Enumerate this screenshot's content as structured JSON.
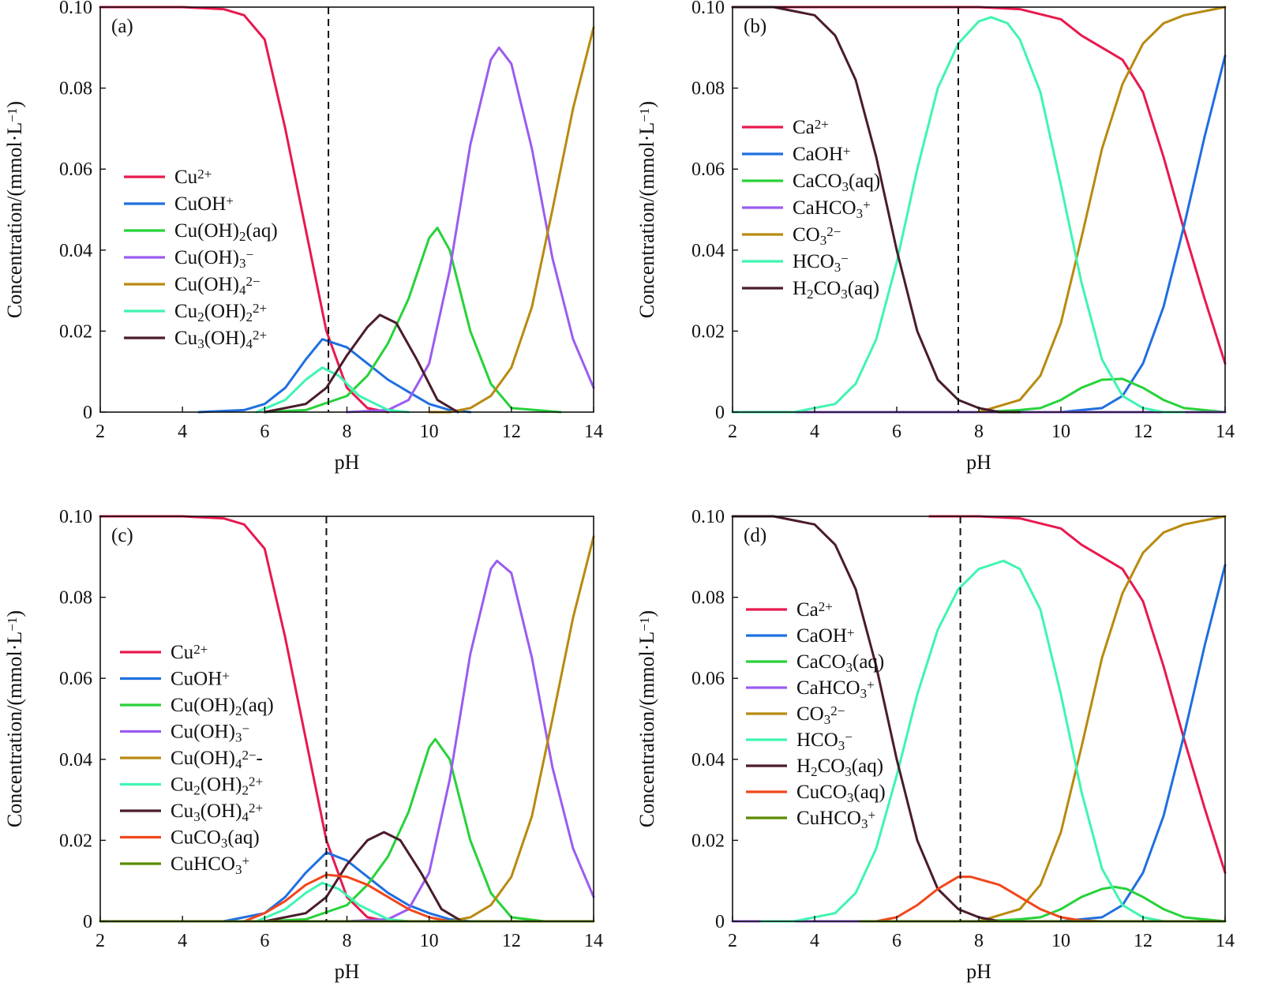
{
  "chart_data": [
    {
      "type": "line",
      "panel_label": "(a)",
      "xlabel": "pH",
      "ylabel": "Concentration/(mmol·L",
      "ylabel_sup": "−1",
      "ylabel_end": ")",
      "xlim": [
        2,
        14
      ],
      "ylim": [
        0,
        0.1
      ],
      "xticks": [
        "2",
        "4",
        "6",
        "8",
        "10",
        "12",
        "14"
      ],
      "yticks": [
        "0",
        "0.02",
        "0.04",
        "0.06",
        "0.08",
        "0.10"
      ],
      "reference_line_x": 7.55,
      "legend_position": "middle-left",
      "series": [
        {
          "name": "Cu²⁺",
          "color": "#e8194f",
          "x": [
            2,
            4,
            5,
            5.5,
            6,
            6.5,
            7,
            7.5,
            8,
            8.5,
            9
          ],
          "y": [
            0.1,
            0.1,
            0.0995,
            0.098,
            0.092,
            0.07,
            0.045,
            0.02,
            0.006,
            0.001,
            0
          ]
        },
        {
          "name": "CuOH⁺",
          "color": "#1f6fe0",
          "x": [
            4.4,
            5.5,
            6,
            6.5,
            7,
            7.4,
            8,
            8.5,
            9,
            9.5,
            10,
            10.5,
            11
          ],
          "y": [
            0,
            0.0005,
            0.002,
            0.006,
            0.013,
            0.018,
            0.016,
            0.012,
            0.008,
            0.005,
            0.002,
            0.0005,
            0
          ]
        },
        {
          "name": "Cu(OH)₂(aq)",
          "color": "#27d23a",
          "x": [
            6,
            7,
            8,
            8.5,
            9,
            9.5,
            10,
            10.2,
            10.5,
            11,
            11.5,
            12,
            13.2
          ],
          "y": [
            0,
            0.0005,
            0.004,
            0.009,
            0.017,
            0.028,
            0.043,
            0.0455,
            0.04,
            0.02,
            0.007,
            0.001,
            0
          ]
        },
        {
          "name": "Cu(OH)₃⁻",
          "color": "#9b5cf0",
          "x": [
            8,
            9,
            9.5,
            10,
            10.5,
            11,
            11.5,
            11.7,
            12,
            12.5,
            13,
            13.5,
            14
          ],
          "y": [
            0,
            0.0005,
            0.003,
            0.012,
            0.035,
            0.066,
            0.087,
            0.09,
            0.086,
            0.065,
            0.038,
            0.018,
            0.006
          ]
        },
        {
          "name": "Cu(OH)₄²⁻",
          "color": "#b88a10",
          "x": [
            10,
            10.5,
            11,
            11.5,
            12,
            12.5,
            13,
            13.5,
            14
          ],
          "y": [
            0,
            0,
            0.001,
            0.004,
            0.011,
            0.026,
            0.05,
            0.075,
            0.095
          ]
        },
        {
          "name": "Cu₂(OH)₂²⁺",
          "color": "#3ff5b0",
          "x": [
            5.8,
            6.5,
            7,
            7.4,
            7.8,
            8.3,
            9,
            9.5
          ],
          "y": [
            0,
            0.003,
            0.008,
            0.011,
            0.009,
            0.004,
            0.0005,
            0
          ]
        },
        {
          "name": "Cu₃(OH)₄²⁺",
          "color": "#4a1c2c",
          "x": [
            6,
            7,
            7.5,
            8,
            8.5,
            8.8,
            9.2,
            9.7,
            10.2,
            10.7
          ],
          "y": [
            0,
            0.002,
            0.006,
            0.014,
            0.021,
            0.024,
            0.022,
            0.013,
            0.003,
            0
          ]
        }
      ],
      "legend": [
        "Cu²⁺",
        "CuOH⁺",
        "Cu(OH)₂(aq)",
        "Cu(OH)₃⁻",
        "Cu(OH)₄²⁻",
        "Cu₂(OH)₂²⁺",
        "Cu₃(OH)₄²⁺"
      ]
    },
    {
      "type": "line",
      "panel_label": "(b)",
      "xlabel": "pH",
      "ylabel": "Concentration/(mmol·L",
      "ylabel_sup": "−1",
      "ylabel_end": ")",
      "xlim": [
        2,
        14
      ],
      "ylim": [
        0,
        0.1
      ],
      "xticks": [
        "2",
        "4",
        "6",
        "8",
        "10",
        "12",
        "14"
      ],
      "yticks": [
        "0",
        "0.02",
        "0.04",
        "0.06",
        "0.08",
        "0.10"
      ],
      "reference_line_x": 7.5,
      "legend_position": "middle-left",
      "series": [
        {
          "name": "Ca²⁺",
          "color": "#e8194f",
          "x": [
            2,
            8,
            9,
            10,
            10.5,
            11,
            11.5,
            12,
            12.5,
            13,
            13.5,
            14
          ],
          "y": [
            0.1,
            0.1,
            0.0995,
            0.097,
            0.093,
            0.09,
            0.087,
            0.079,
            0.063,
            0.045,
            0.028,
            0.012
          ]
        },
        {
          "name": "CaOH⁺",
          "color": "#1f6fe0",
          "x": [
            10,
            10.5,
            11,
            11.5,
            12,
            12.5,
            13,
            13.5,
            14
          ],
          "y": [
            0,
            0.0005,
            0.001,
            0.004,
            0.012,
            0.026,
            0.046,
            0.068,
            0.088
          ]
        },
        {
          "name": "CaCO₃(aq)",
          "color": "#27d23a",
          "x": [
            8,
            9,
            9.5,
            10,
            10.5,
            11,
            11.5,
            12,
            12.5,
            13,
            14
          ],
          "y": [
            0,
            0.0005,
            0.001,
            0.003,
            0.006,
            0.008,
            0.0082,
            0.006,
            0.003,
            0.001,
            0
          ]
        },
        {
          "name": "CaHCO₃⁺",
          "color": "#9b5cf0",
          "x": [
            2,
            14
          ],
          "y": [
            0,
            0
          ]
        },
        {
          "name": "CO₃²⁻",
          "color": "#b88a10",
          "x": [
            8,
            9,
            9.5,
            10,
            10.5,
            11,
            11.5,
            12,
            12.5,
            13,
            13.5,
            14
          ],
          "y": [
            0,
            0.003,
            0.009,
            0.022,
            0.043,
            0.065,
            0.081,
            0.091,
            0.096,
            0.098,
            0.099,
            0.1
          ]
        },
        {
          "name": "HCO₃⁻",
          "color": "#3ff5b0",
          "x": [
            2,
            3.5,
            4.5,
            5,
            5.5,
            6,
            6.5,
            7,
            7.5,
            8,
            8.3,
            8.7,
            9,
            9.5,
            10,
            10.5,
            11,
            11.5,
            12,
            12.5,
            13
          ],
          "y": [
            0,
            0,
            0.002,
            0.007,
            0.018,
            0.037,
            0.06,
            0.08,
            0.091,
            0.0965,
            0.0975,
            0.096,
            0.092,
            0.079,
            0.056,
            0.032,
            0.013,
            0.004,
            0.001,
            0,
            0
          ]
        },
        {
          "name": "H₂CO₃(aq)",
          "color": "#4a1c2c",
          "x": [
            2,
            3,
            4,
            4.5,
            5,
            5.5,
            6,
            6.5,
            7,
            7.5,
            8,
            8.5,
            9
          ],
          "y": [
            0.1,
            0.1,
            0.098,
            0.093,
            0.082,
            0.063,
            0.04,
            0.02,
            0.008,
            0.003,
            0.001,
            0,
            0
          ]
        }
      ],
      "legend": [
        "Ca²⁺",
        "CaOH⁺",
        "CaCO₃(aq)",
        "CaHCO₃⁺",
        "CO₃²⁻",
        "HCO₃⁻",
        "H₂CO₃(aq)"
      ]
    },
    {
      "type": "line",
      "panel_label": "(c)",
      "xlabel": "pH",
      "ylabel": "Concentration/(mmol·L",
      "ylabel_sup": "−1",
      "ylabel_end": ")",
      "xlim": [
        2,
        14
      ],
      "ylim": [
        0,
        0.1
      ],
      "xticks": [
        "2",
        "4",
        "6",
        "8",
        "10",
        "12",
        "14"
      ],
      "yticks": [
        "0",
        "0.02",
        "0.04",
        "0.06",
        "0.08",
        "0.10"
      ],
      "reference_line_x": 7.5,
      "legend_position": "middle-left",
      "series": [
        {
          "name": "Cu²⁺",
          "color": "#e8194f",
          "x": [
            2,
            4,
            5,
            5.5,
            6,
            6.5,
            7,
            7.5,
            8,
            8.5,
            9
          ],
          "y": [
            0.1,
            0.1,
            0.0995,
            0.098,
            0.092,
            0.07,
            0.045,
            0.02,
            0.006,
            0.001,
            0
          ]
        },
        {
          "name": "CuOH⁺",
          "color": "#1f6fe0",
          "x": [
            5,
            6,
            6.5,
            7,
            7.5,
            8,
            8.5,
            9,
            9.5,
            10,
            10.5,
            11
          ],
          "y": [
            0,
            0.002,
            0.006,
            0.012,
            0.017,
            0.015,
            0.011,
            0.007,
            0.004,
            0.002,
            0.0005,
            0
          ]
        },
        {
          "name": "Cu(OH)₂(aq)",
          "color": "#27d23a",
          "x": [
            6,
            7,
            8,
            8.5,
            9,
            9.5,
            10,
            10.15,
            10.5,
            11,
            11.5,
            12,
            12.8
          ],
          "y": [
            0,
            0.0005,
            0.004,
            0.009,
            0.016,
            0.027,
            0.043,
            0.045,
            0.04,
            0.02,
            0.007,
            0.001,
            0
          ]
        },
        {
          "name": "Cu(OH)₃⁻",
          "color": "#9b5cf0",
          "x": [
            8,
            9,
            9.5,
            10,
            10.5,
            11,
            11.5,
            11.65,
            12,
            12.5,
            13,
            13.5,
            14
          ],
          "y": [
            0,
            0.0005,
            0.003,
            0.012,
            0.035,
            0.066,
            0.087,
            0.089,
            0.086,
            0.065,
            0.038,
            0.018,
            0.006
          ]
        },
        {
          "name": "Cu(OH)₄²⁻-",
          "color": "#b88a10",
          "x": [
            10,
            10.5,
            11,
            11.5,
            12,
            12.5,
            13,
            13.5,
            14
          ],
          "y": [
            0,
            0,
            0.001,
            0.004,
            0.011,
            0.026,
            0.05,
            0.075,
            0.095
          ]
        },
        {
          "name": "Cu₂(OH)₂²⁺",
          "color": "#3ff5b0",
          "x": [
            5.8,
            6.5,
            7,
            7.4,
            7.8,
            8.3,
            9,
            9.5
          ],
          "y": [
            0,
            0.003,
            0.007,
            0.0095,
            0.008,
            0.004,
            0.0005,
            0
          ]
        },
        {
          "name": "Cu₃(OH)₄²⁺",
          "color": "#4a1c2c",
          "x": [
            6,
            7,
            7.5,
            8,
            8.5,
            8.9,
            9.3,
            9.8,
            10.3,
            10.8
          ],
          "y": [
            0,
            0.002,
            0.006,
            0.014,
            0.02,
            0.022,
            0.02,
            0.012,
            0.003,
            0
          ]
        },
        {
          "name": "CuCO₃(aq)",
          "color": "#f2461c",
          "x": [
            5.5,
            6,
            6.5,
            7,
            7.5,
            8,
            8.5,
            9,
            9.5,
            10,
            10.5
          ],
          "y": [
            0,
            0.002,
            0.005,
            0.009,
            0.0115,
            0.011,
            0.009,
            0.006,
            0.003,
            0.001,
            0
          ]
        },
        {
          "name": "CuHCO₃⁺",
          "color": "#5a8a00",
          "x": [
            2,
            14
          ],
          "y": [
            0,
            0
          ]
        }
      ],
      "legend": [
        "Cu²⁺",
        "CuOH⁺",
        "Cu(OH)₂(aq)",
        "Cu(OH)₃⁻",
        "Cu(OH)₄²⁻-",
        "Cu₂(OH)₂²⁺",
        "Cu₃(OH)₄²⁺",
        "CuCO₃(aq)",
        "CuHCO₃⁺"
      ]
    },
    {
      "type": "line",
      "panel_label": "(d)",
      "xlabel": "pH",
      "ylabel": "Concentration/(mmol·L",
      "ylabel_sup": "−1",
      "ylabel_end": ")",
      "xlim": [
        2,
        14
      ],
      "ylim": [
        0,
        0.1
      ],
      "xticks": [
        "2",
        "4",
        "6",
        "8",
        "10",
        "12",
        "14"
      ],
      "yticks": [
        "0",
        "0.02",
        "0.04",
        "0.06",
        "0.08",
        "0.10"
      ],
      "reference_line_x": 7.55,
      "legend_position": "middle-left",
      "series": [
        {
          "name": "Ca²⁺",
          "color": "#e8194f",
          "x": [
            6.8,
            8,
            9,
            10,
            10.5,
            11,
            11.5,
            12,
            12.5,
            13,
            13.5,
            14
          ],
          "y": [
            0.1,
            0.1,
            0.0995,
            0.097,
            0.093,
            0.09,
            0.087,
            0.079,
            0.063,
            0.045,
            0.028,
            0.012
          ]
        },
        {
          "name": "CaOH⁺",
          "color": "#1f6fe0",
          "x": [
            10,
            10.5,
            11,
            11.5,
            12,
            12.5,
            13,
            13.5,
            14
          ],
          "y": [
            0,
            0.0005,
            0.001,
            0.004,
            0.012,
            0.026,
            0.046,
            0.068,
            0.088
          ]
        },
        {
          "name": "CaCO₃(aq)",
          "color": "#27d23a",
          "x": [
            8,
            9,
            9.5,
            10,
            10.5,
            11,
            11.3,
            11.6,
            12,
            12.5,
            13,
            14
          ],
          "y": [
            0,
            0.0005,
            0.001,
            0.003,
            0.006,
            0.008,
            0.0085,
            0.008,
            0.006,
            0.003,
            0.001,
            0
          ]
        },
        {
          "name": "CaHCO₃⁺",
          "color": "#9b5cf0",
          "x": [
            2,
            14
          ],
          "y": [
            0,
            0
          ]
        },
        {
          "name": "CO₃²⁻",
          "color": "#b88a10",
          "x": [
            8,
            9,
            9.5,
            10,
            10.5,
            11,
            11.5,
            12,
            12.5,
            13,
            13.5,
            14
          ],
          "y": [
            0,
            0.003,
            0.009,
            0.022,
            0.043,
            0.065,
            0.081,
            0.091,
            0.096,
            0.098,
            0.099,
            0.1
          ]
        },
        {
          "name": "HCO₃⁻",
          "color": "#3ff5b0",
          "x": [
            2.7,
            3.5,
            4.5,
            5,
            5.5,
            6,
            6.5,
            7,
            7.5,
            8,
            8.6,
            9,
            9.5,
            10,
            10.5,
            11,
            11.5,
            12,
            12.5,
            13
          ],
          "y": [
            0,
            0,
            0.002,
            0.007,
            0.018,
            0.036,
            0.056,
            0.072,
            0.082,
            0.087,
            0.089,
            0.087,
            0.077,
            0.056,
            0.032,
            0.013,
            0.004,
            0.001,
            0,
            0
          ]
        },
        {
          "name": "H₂CO₃(aq)",
          "color": "#4a1c2c",
          "x": [
            2,
            3,
            4,
            4.5,
            5,
            5.5,
            6,
            6.5,
            7,
            7.5,
            8,
            8.5,
            9
          ],
          "y": [
            0.1,
            0.1,
            0.098,
            0.093,
            0.082,
            0.063,
            0.04,
            0.02,
            0.008,
            0.003,
            0.001,
            0,
            0
          ]
        },
        {
          "name": "CuCO₃(aq)",
          "color": "#f2461c",
          "x": [
            5.5,
            6,
            6.5,
            7,
            7.5,
            7.8,
            8.5,
            9,
            9.5,
            10,
            10.5,
            11
          ],
          "y": [
            0,
            0.001,
            0.004,
            0.008,
            0.011,
            0.011,
            0.009,
            0.006,
            0.003,
            0.001,
            0.0002,
            0
          ]
        },
        {
          "name": "CuHCO₃⁺",
          "color": "#5a8a00",
          "x": [
            5.1,
            14
          ],
          "y": [
            0,
            0
          ]
        }
      ],
      "legend": [
        "Ca²⁺",
        "CaOH⁺",
        "CaCO₃(aq)",
        "CaHCO₃⁺",
        "CO₃²⁻",
        "HCO₃⁻",
        "H₂CO₃(aq)",
        "CuCO₃(aq)",
        "CuHCO₃⁺"
      ]
    }
  ]
}
